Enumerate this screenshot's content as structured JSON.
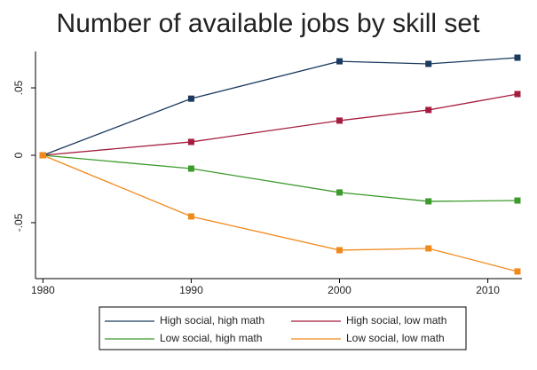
{
  "chart_data": {
    "type": "line",
    "title": "Number of available jobs by skill set",
    "x": [
      1980,
      1990,
      2000,
      2006,
      2012
    ],
    "series": [
      {
        "name": "High social, high math",
        "color": "#1b3a5e",
        "values": [
          0,
          0.042,
          0.0697,
          0.0678,
          0.0724
        ]
      },
      {
        "name": "High social, low math",
        "color": "#a51c3e",
        "values": [
          0,
          0.0099,
          0.0257,
          0.0336,
          0.0454
        ]
      },
      {
        "name": "Low social, high math",
        "color": "#3d9a2c",
        "values": [
          0,
          -0.0099,
          -0.0276,
          -0.0342,
          -0.0336
        ]
      },
      {
        "name": "Low social, low math",
        "color": "#f08a1c",
        "values": [
          0,
          -0.0454,
          -0.0704,
          -0.0691,
          -0.0862
        ]
      }
    ],
    "xlim": [
      1979.5,
      2012.3
    ],
    "xticks": [
      1980,
      1990,
      2000,
      2010
    ],
    "ylim": [
      -0.0915,
      0.077
    ],
    "yticks": [
      {
        "value": -0.05,
        "label": "-.05"
      },
      0,
      {
        "value": 0.05,
        "label": ".05"
      }
    ]
  }
}
